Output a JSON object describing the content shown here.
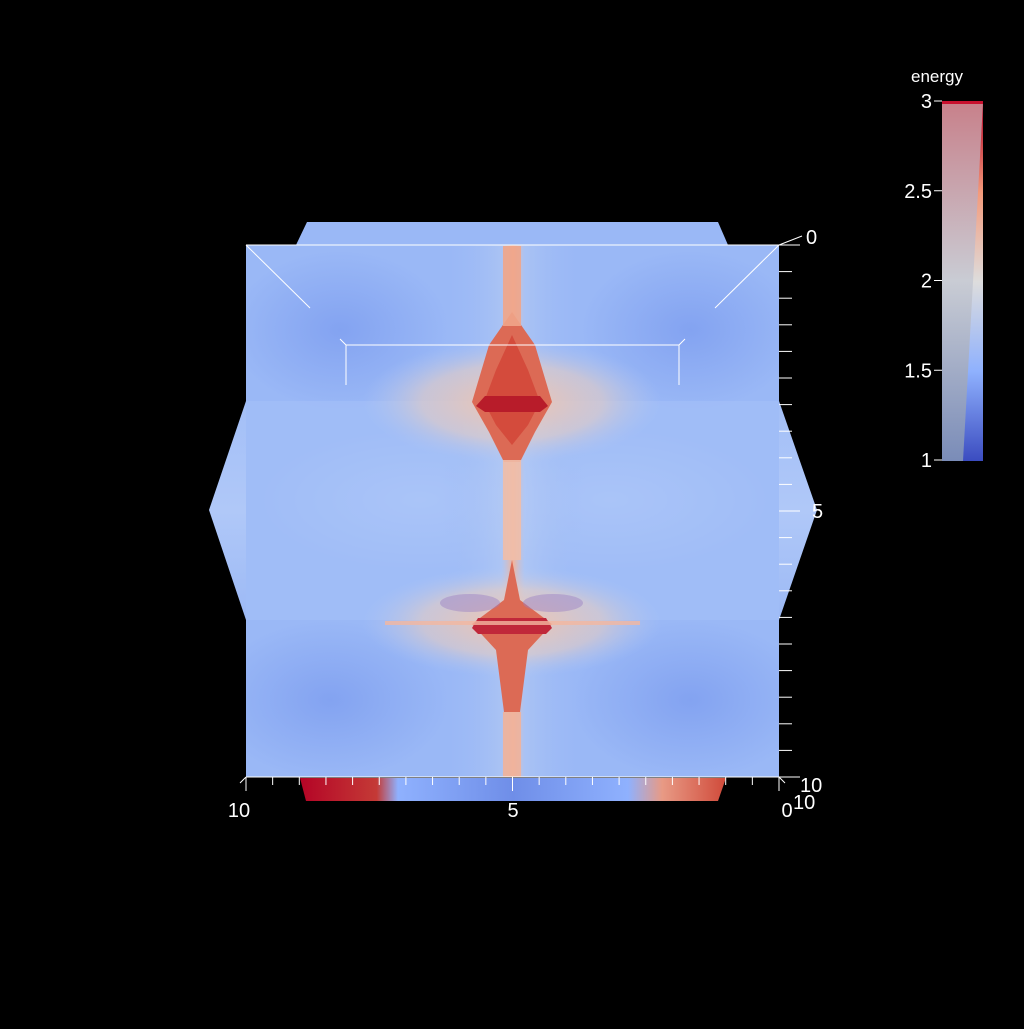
{
  "colorbar": {
    "title": "energy",
    "ticks": [
      {
        "label": "3",
        "value": 3
      },
      {
        "label": "2.5",
        "value": 2.5
      },
      {
        "label": "2",
        "value": 2
      },
      {
        "label": "1.5",
        "value": 1.5
      },
      {
        "label": "1",
        "value": 1
      }
    ],
    "range": [
      1,
      3
    ],
    "colormap_stops": [
      "#3b4cc0",
      "#8fb1fe",
      "#dddddd",
      "#f49a7b",
      "#b40426"
    ]
  },
  "axes": {
    "x_left_label": "10",
    "x_mid_label": "5",
    "x_right_label": "0",
    "z_bottom_label": "10",
    "z_side_label": "10",
    "y_top_label": "0",
    "y_mid_label": "5"
  },
  "colors": {
    "background": "#000000",
    "field_base": "#9ab8f6",
    "field_light": "#aac4f8",
    "field_deep": "#7e9ff0",
    "hot": "#d5503c",
    "hot_core": "#b81c2a",
    "warm": "#f0b8a0",
    "axis": "#ffffff"
  }
}
